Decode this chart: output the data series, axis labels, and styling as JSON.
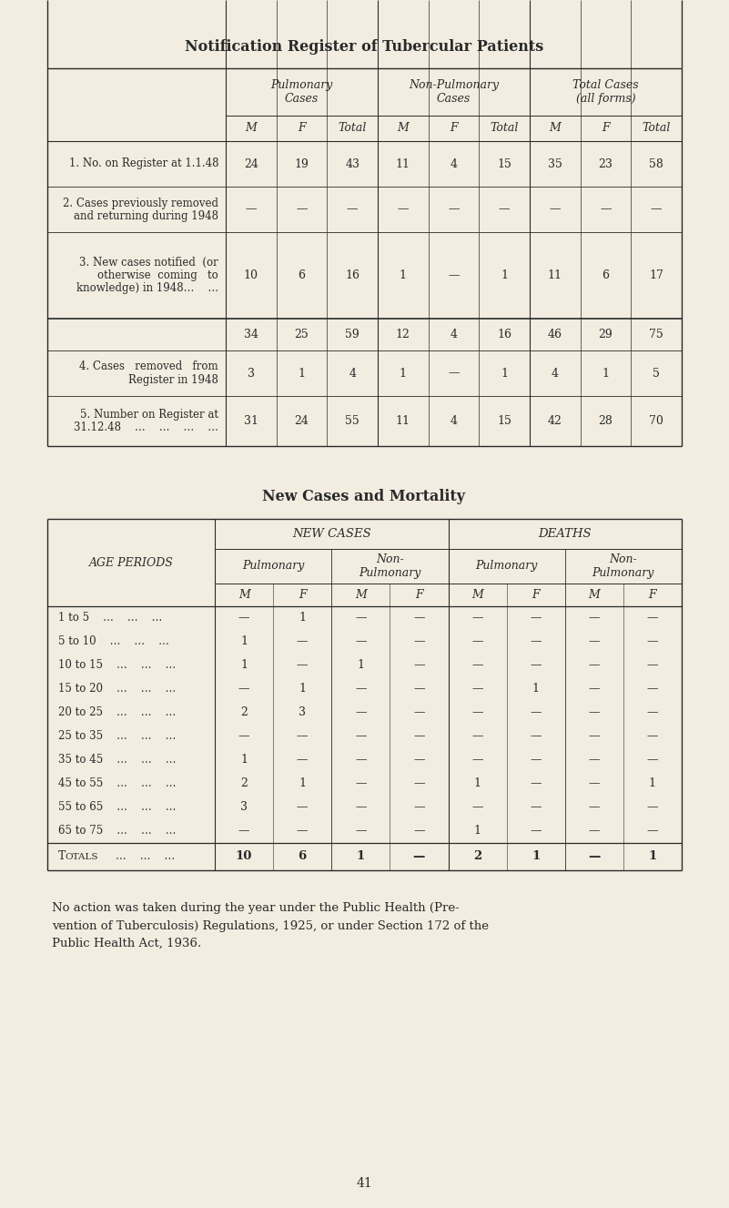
{
  "bg_color": "#f2ede0",
  "text_color": "#2a2a2a",
  "title1": "Notification Register of Tubercular Patients",
  "title2": "New Cases and Mortality",
  "page_number": "41",
  "table1": {
    "col_groups": [
      {
        "label": "Pulmonary\nCases",
        "cols": [
          "M",
          "F",
          "Total"
        ]
      },
      {
        "label": "Non-Pulmonary\nCases",
        "cols": [
          "M",
          "F",
          "Total"
        ]
      },
      {
        "label": "Total Cases\n(all forms)",
        "cols": [
          "M",
          "F",
          "Total"
        ]
      }
    ],
    "rows": [
      {
        "label": "1. No. on Register at 1.1.48",
        "label2": "",
        "values": [
          "24",
          "19",
          "43",
          "11",
          "4",
          "15",
          "35",
          "23",
          "58"
        ]
      },
      {
        "label": "2. Cases previously removed",
        "label2": "and returning during 1948",
        "values": [
          "—",
          "—",
          "—",
          "—",
          "—",
          "—",
          "—",
          "—",
          "—"
        ]
      },
      {
        "label": "3. New cases notified  (or",
        "label2": "otherwise  coming   to",
        "label3": "knowledge) in 1948…    …",
        "values": [
          "10",
          "6",
          "16",
          "1",
          "—",
          "1",
          "11",
          "6",
          "17"
        ]
      },
      {
        "label": "",
        "values": [
          "34",
          "25",
          "59",
          "12",
          "4",
          "16",
          "46",
          "29",
          "75"
        ],
        "subtotal": true
      },
      {
        "label": "4. Cases   removed   from",
        "label2": "Register in 1948",
        "values": [
          "3",
          "1",
          "4",
          "1",
          "—",
          "1",
          "4",
          "1",
          "5"
        ]
      },
      {
        "label": "5. Number on Register at",
        "label2": "31.12.48    …    …    …    …",
        "values": [
          "31",
          "24",
          "55",
          "11",
          "4",
          "15",
          "42",
          "28",
          "70"
        ]
      }
    ]
  },
  "table2": {
    "age_periods": [
      "1 to 5",
      "5 to 10",
      "10 to 15",
      "15 to 20",
      "20 to 25",
      "25 to 35",
      "35 to 45",
      "45 to 55",
      "55 to 65",
      "65 to 75"
    ],
    "new_cases_pulmonary_M": [
      "—",
      "1",
      "1",
      "—",
      "2",
      "—",
      "1",
      "2",
      "3",
      "—"
    ],
    "new_cases_pulmonary_F": [
      "1",
      "—",
      "—",
      "1",
      "3",
      "—",
      "—",
      "1",
      "—",
      "—"
    ],
    "new_cases_nonpulm_M": [
      "—",
      "—",
      "1",
      "—",
      "—",
      "—",
      "—",
      "—",
      "—",
      "—"
    ],
    "new_cases_nonpulm_F": [
      "—",
      "—",
      "—",
      "—",
      "—",
      "—",
      "—",
      "—",
      "—",
      "—"
    ],
    "deaths_pulmonary_M": [
      "—",
      "—",
      "—",
      "—",
      "—",
      "—",
      "—",
      "1",
      "—",
      "1"
    ],
    "deaths_pulmonary_F": [
      "—",
      "—",
      "—",
      "1",
      "—",
      "—",
      "—",
      "—",
      "—",
      "—"
    ],
    "deaths_nonpulm_M": [
      "—",
      "—",
      "—",
      "—",
      "—",
      "—",
      "—",
      "—",
      "—",
      "—"
    ],
    "deaths_nonpulm_F": [
      "—",
      "—",
      "—",
      "—",
      "—",
      "—",
      "—",
      "1",
      "—",
      "—"
    ],
    "totals_new_pulm_M": "10",
    "totals_new_pulm_F": "6",
    "totals_new_nonpulm_M": "1",
    "totals_new_nonpulm_F": "—",
    "totals_deaths_pulm_M": "2",
    "totals_deaths_pulm_F": "1",
    "totals_deaths_nonpulm_M": "—",
    "totals_deaths_nonpulm_F": "1"
  },
  "footer_text": "No action was taken during the year under the Public Health (Pre-\nvention of Tuberculosis) Regulations, 1925, or under Section 172 of the\nPublic Health Act, 1936."
}
